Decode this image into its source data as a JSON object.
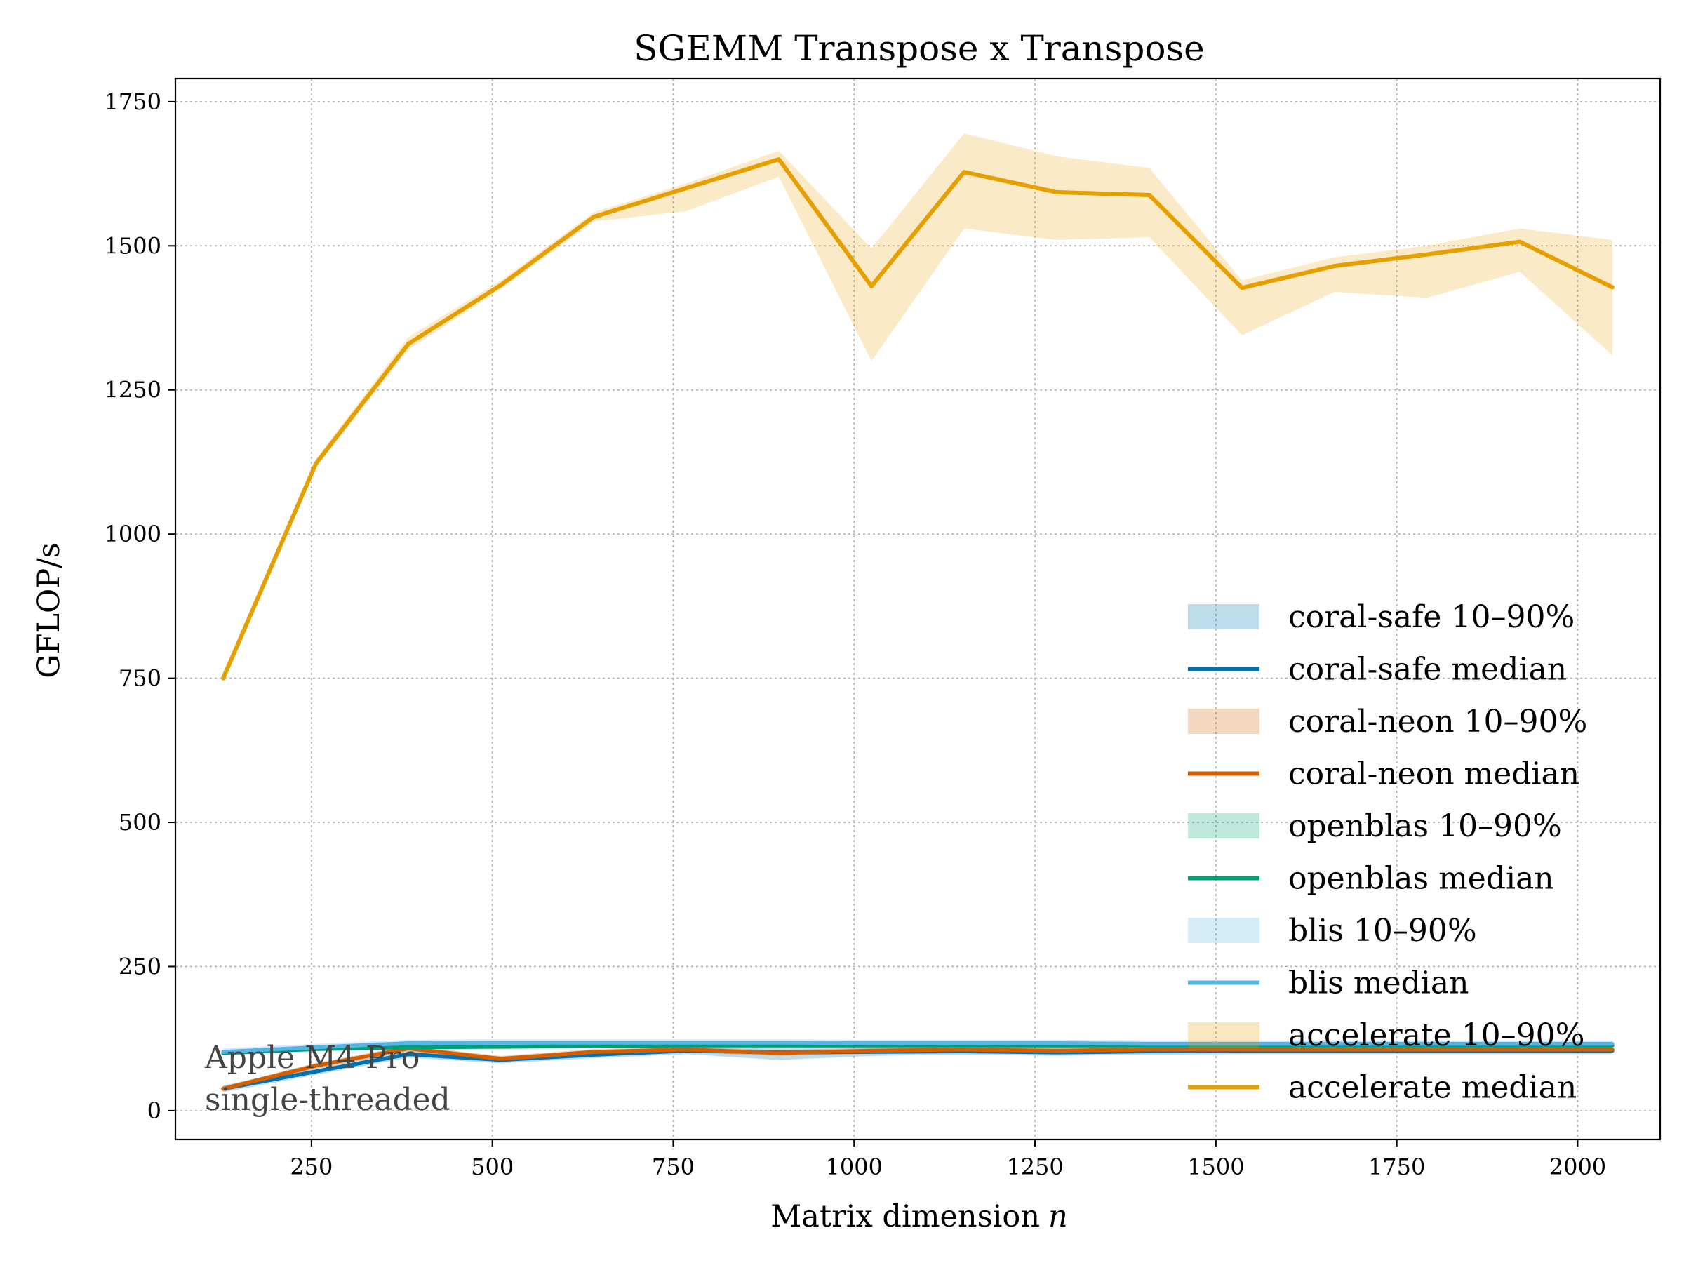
{
  "chart_data": {
    "type": "line",
    "title": "SGEMM  Transpose x Transpose",
    "xlabel": "Matrix dimension",
    "xlabel_var": "n",
    "ylabel": "GFLOP/s",
    "xlim": [
      62,
      2114
    ],
    "ylim": [
      -50,
      1790
    ],
    "xticks": [
      250,
      500,
      750,
      1000,
      1250,
      1500,
      1750,
      2000
    ],
    "yticks": [
      0,
      250,
      500,
      750,
      1000,
      1250,
      1500,
      1750
    ],
    "grid": true,
    "legend_position": "lower-right",
    "x": [
      128,
      256,
      384,
      512,
      640,
      768,
      896,
      1024,
      1152,
      1280,
      1408,
      1536,
      1664,
      1792,
      1920,
      2048
    ],
    "series": [
      {
        "key": "coral_safe",
        "color": "#0072b2",
        "band_label": "coral-safe 10–90%",
        "median_label": "coral-safe median",
        "median": [
          38,
          68,
          98,
          88,
          97,
          104,
          101,
          102,
          103,
          101,
          103,
          104,
          104,
          104,
          104,
          104
        ],
        "p10": [
          32,
          62,
          92,
          82,
          91,
          98,
          88,
          95,
          97,
          95,
          97,
          98,
          98,
          98,
          98,
          98
        ],
        "p90": [
          44,
          74,
          104,
          94,
          103,
          110,
          108,
          108,
          109,
          107,
          109,
          110,
          110,
          110,
          110,
          110
        ]
      },
      {
        "key": "coral_neon",
        "color": "#d55e00",
        "band_label": "coral-neon 10–90%",
        "median_label": "coral-neon median",
        "median": [
          38,
          78,
          108,
          90,
          102,
          106,
          100,
          104,
          106,
          104,
          106,
          106,
          106,
          106,
          106,
          106
        ],
        "p10": [
          34,
          73,
          103,
          85,
          97,
          101,
          95,
          99,
          101,
          99,
          101,
          101,
          101,
          101,
          101,
          101
        ],
        "p90": [
          42,
          83,
          113,
          95,
          107,
          111,
          105,
          109,
          111,
          109,
          111,
          111,
          111,
          111,
          111,
          111
        ]
      },
      {
        "key": "openblas",
        "color": "#009e73",
        "band_label": "openblas 10–90%",
        "median_label": "openblas median",
        "median": [
          100,
          107,
          110,
          111,
          112,
          113,
          113,
          113,
          113,
          113,
          113,
          113,
          113,
          113,
          113,
          113
        ],
        "p10": [
          96,
          103,
          106,
          107,
          108,
          109,
          109,
          109,
          109,
          109,
          109,
          109,
          109,
          109,
          109,
          109
        ],
        "p90": [
          104,
          111,
          114,
          115,
          116,
          117,
          117,
          117,
          117,
          117,
          117,
          117,
          117,
          117,
          117,
          117
        ]
      },
      {
        "key": "blis",
        "color": "#56b4e9",
        "band_label": "blis 10–90%",
        "median_label": "blis median",
        "median": [
          102,
          110,
          117,
          118,
          118,
          118,
          118,
          117,
          117,
          117,
          116,
          116,
          116,
          116,
          116,
          116
        ],
        "p10": [
          96,
          104,
          111,
          112,
          112,
          112,
          112,
          111,
          111,
          111,
          110,
          110,
          110,
          110,
          110,
          110
        ],
        "p90": [
          108,
          116,
          123,
          124,
          124,
          124,
          124,
          123,
          123,
          123,
          122,
          122,
          122,
          122,
          122,
          122
        ]
      },
      {
        "key": "accelerate",
        "color": "#e69f00",
        "band_label": "accelerate 10–90%",
        "median_label": "accelerate median",
        "median": [
          750,
          1122,
          1330,
          1432,
          1550,
          1600,
          1650,
          1430,
          1628,
          1593,
          1588,
          1427,
          1465,
          1485,
          1507,
          1428
        ],
        "p10": [
          745,
          1115,
          1320,
          1425,
          1542,
          1560,
          1620,
          1300,
          1530,
          1510,
          1515,
          1345,
          1420,
          1410,
          1455,
          1310
        ],
        "p90": [
          756,
          1130,
          1342,
          1440,
          1558,
          1608,
          1665,
          1495,
          1695,
          1655,
          1635,
          1440,
          1480,
          1500,
          1530,
          1510
        ]
      }
    ],
    "annotation": [
      "Apple M4 Pro",
      "single-threaded"
    ]
  }
}
